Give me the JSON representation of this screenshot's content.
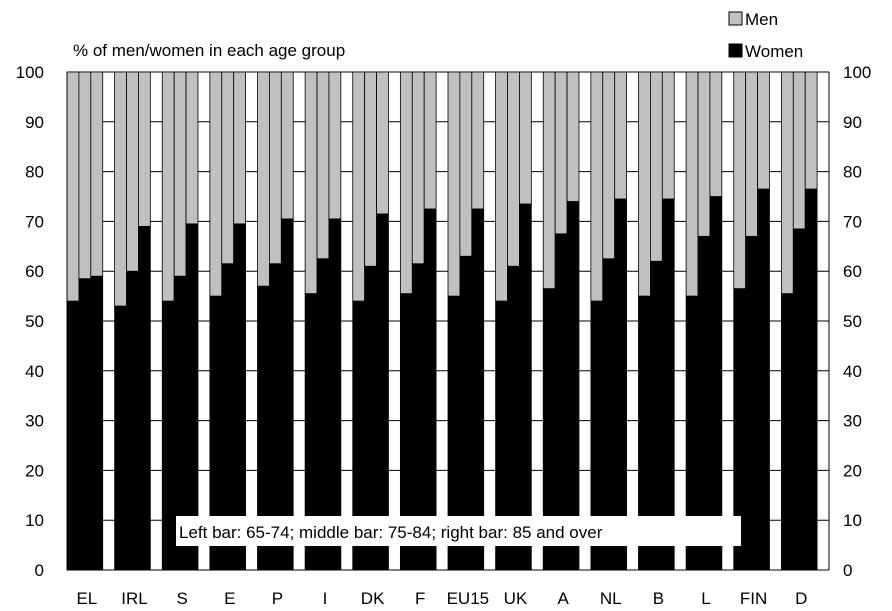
{
  "chart_data": {
    "type": "bar",
    "stacked": true,
    "subtitle": "% of men/women in each age group",
    "note": "Left bar: 65-74; middle bar: 75-84; right bar: 85 and over",
    "categories": [
      "EL",
      "IRL",
      "S",
      "E",
      "P",
      "I",
      "DK",
      "F",
      "EU15",
      "UK",
      "A",
      "NL",
      "B",
      "L",
      "FIN",
      "D"
    ],
    "subcategories": [
      "65-74",
      "75-84",
      "85 and over"
    ],
    "series": [
      {
        "name": "Women",
        "color": "#000000",
        "values": [
          [
            54,
            58.5,
            59
          ],
          [
            53,
            60,
            69
          ],
          [
            54,
            59,
            69.5
          ],
          [
            55,
            61.5,
            69.5
          ],
          [
            57,
            61.5,
            70.5
          ],
          [
            55.5,
            62.5,
            70.5
          ],
          [
            54,
            61,
            71.5
          ],
          [
            55.5,
            61.5,
            72.5
          ],
          [
            55,
            63,
            72.5
          ],
          [
            54,
            61,
            73.5
          ],
          [
            56.5,
            67.5,
            74
          ],
          [
            54,
            62.5,
            74.5
          ],
          [
            55,
            62,
            74.5
          ],
          [
            55,
            67,
            75
          ],
          [
            56.5,
            67,
            76.5
          ],
          [
            55.5,
            68.5,
            76.5
          ]
        ]
      },
      {
        "name": "Men",
        "color": "#c0c0c0",
        "values": [
          [
            46,
            41.5,
            41
          ],
          [
            47,
            40,
            31
          ],
          [
            46,
            41,
            30.5
          ],
          [
            45,
            38.5,
            30.5
          ],
          [
            43,
            38.5,
            29.5
          ],
          [
            44.5,
            37.5,
            29.5
          ],
          [
            46,
            39,
            28.5
          ],
          [
            44.5,
            38.5,
            27.5
          ],
          [
            45,
            37,
            27.5
          ],
          [
            46,
            39,
            26.5
          ],
          [
            43.5,
            32.5,
            26
          ],
          [
            46,
            37.5,
            25.5
          ],
          [
            45,
            38,
            25.5
          ],
          [
            45,
            33,
            25
          ],
          [
            43.5,
            33,
            23.5
          ],
          [
            44.5,
            31.5,
            23.5
          ]
        ]
      }
    ],
    "ylim": [
      0,
      100
    ],
    "yticks": [
      "0",
      "10",
      "20",
      "30",
      "40",
      "50",
      "60",
      "70",
      "80",
      "90",
      "100"
    ],
    "grid": true,
    "legend_position": "top-right",
    "dual_y_axis": true
  }
}
